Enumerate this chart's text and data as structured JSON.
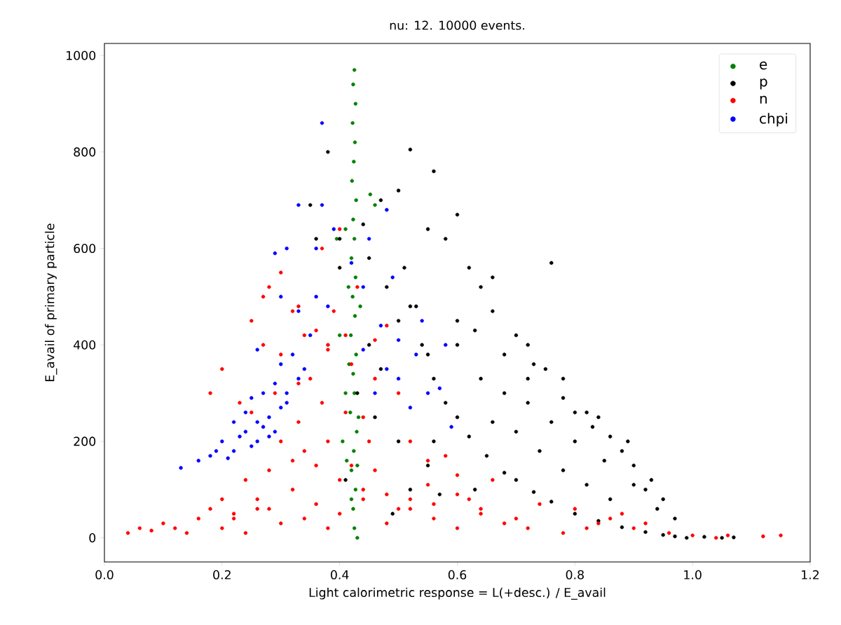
{
  "chart_data": {
    "type": "scatter",
    "title": "nu: 12. 10000 events.",
    "xlabel": "Light calorimetric response = L(+desc.) / E_avail",
    "ylabel": "E_avail of primary particle",
    "xlim": [
      0,
      1.2
    ],
    "ylim": [
      -50,
      1025
    ],
    "xticks": [
      {
        "value": 0,
        "label": "0.0"
      },
      0.2,
      0.4,
      0.6,
      0.8,
      {
        "value": 1,
        "label": "1.0"
      },
      1.2
    ],
    "yticks": [
      0,
      200,
      400,
      600,
      800,
      1000
    ],
    "legend": "top right",
    "marker": "circle",
    "grid": false,
    "series": [
      {
        "name": "e",
        "color": "#008000",
        "x": [
          0.425,
          0.423,
          0.427,
          0.422,
          0.426,
          0.424,
          0.421,
          0.428,
          0.423,
          0.425,
          0.42,
          0.427,
          0.422,
          0.426,
          0.419,
          0.428,
          0.423,
          0.425,
          0.418,
          0.429,
          0.424,
          0.42,
          0.427,
          0.423,
          0.425,
          0.41,
          0.395,
          0.452,
          0.46,
          0.4,
          0.41,
          0.405,
          0.43,
          0.415,
          0.435,
          0.412,
          0.432,
          0.416,
          0.43,
          0.42
        ],
        "values": [
          970,
          940,
          900,
          860,
          820,
          780,
          740,
          700,
          660,
          620,
          580,
          540,
          500,
          460,
          420,
          380,
          340,
          300,
          260,
          220,
          180,
          140,
          100,
          60,
          20,
          640,
          620,
          712,
          690,
          420,
          300,
          200,
          0,
          520,
          480,
          160,
          250,
          360,
          150,
          80
        ]
      },
      {
        "name": "p",
        "color": "#000000",
        "x": [
          0.51,
          0.52,
          0.54,
          0.56,
          0.58,
          0.6,
          0.62,
          0.65,
          0.68,
          0.7,
          0.73,
          0.76,
          0.8,
          0.84,
          0.88,
          0.92,
          0.95,
          0.97,
          0.99,
          1.02,
          1.05,
          1.07,
          0.52,
          0.56,
          0.6,
          0.55,
          0.58,
          0.62,
          0.64,
          0.66,
          0.6,
          0.63,
          0.68,
          0.7,
          0.73,
          0.75,
          0.78,
          0.8,
          0.83,
          0.86,
          0.88,
          0.9,
          0.93,
          0.95,
          0.68,
          0.72,
          0.76,
          0.8,
          0.85,
          0.9,
          0.94,
          0.66,
          0.7,
          0.74,
          0.78,
          0.82,
          0.86,
          0.64,
          0.72,
          0.78,
          0.84,
          0.89,
          0.92,
          0.97,
          0.38,
          0.35,
          0.4,
          0.44,
          0.47,
          0.5,
          0.45,
          0.48,
          0.5,
          0.53,
          0.45,
          0.47,
          0.55,
          0.43,
          0.36,
          0.4,
          0.46,
          0.5,
          0.41,
          0.56,
          0.52,
          0.63,
          0.72,
          0.6,
          0.66,
          0.76,
          0.82,
          0.55,
          0.57,
          0.49
        ],
        "values": [
          560,
          480,
          400,
          330,
          280,
          250,
          210,
          170,
          135,
          120,
          95,
          75,
          50,
          35,
          22,
          12,
          6,
          3,
          0,
          2,
          0,
          1,
          805,
          760,
          670,
          640,
          620,
          560,
          520,
          470,
          400,
          430,
          380,
          420,
          360,
          350,
          330,
          260,
          230,
          210,
          180,
          150,
          120,
          80,
          300,
          280,
          240,
          200,
          160,
          110,
          60,
          240,
          220,
          180,
          140,
          110,
          80,
          330,
          330,
          290,
          250,
          200,
          100,
          40,
          800,
          690,
          620,
          650,
          700,
          720,
          580,
          520,
          450,
          480,
          400,
          350,
          380,
          300,
          620,
          560,
          250,
          200,
          120,
          200,
          100,
          100,
          400,
          450,
          540,
          570,
          260,
          150,
          90,
          50
        ]
      },
      {
        "name": "n",
        "color": "#ff0000",
        "x": [
          0.04,
          0.06,
          0.08,
          0.1,
          0.12,
          0.14,
          0.16,
          0.18,
          0.2,
          0.22,
          0.24,
          0.26,
          0.28,
          0.3,
          0.32,
          0.34,
          0.36,
          0.38,
          0.4,
          0.44,
          0.48,
          0.52,
          0.56,
          0.6,
          0.64,
          0.68,
          0.72,
          0.78,
          0.84,
          0.9,
          0.96,
          1.0,
          1.04,
          1.06,
          1.12,
          1.15,
          0.2,
          0.24,
          0.28,
          0.32,
          0.36,
          0.4,
          0.44,
          0.48,
          0.52,
          0.56,
          0.6,
          0.64,
          0.7,
          0.22,
          0.26,
          0.3,
          0.34,
          0.38,
          0.42,
          0.46,
          0.5,
          0.55,
          0.6,
          0.25,
          0.29,
          0.33,
          0.37,
          0.41,
          0.45,
          0.3,
          0.34,
          0.38,
          0.42,
          0.46,
          0.5,
          0.18,
          0.2,
          0.23,
          0.25,
          0.27,
          0.3,
          0.33,
          0.36,
          0.39,
          0.43,
          0.28,
          0.32,
          0.37,
          0.4,
          0.35,
          0.38,
          0.46,
          0.48,
          0.55,
          0.62,
          0.66,
          0.74,
          0.8,
          0.86,
          0.92,
          0.82,
          0.88,
          0.52,
          0.58,
          0.44,
          0.27,
          0.41,
          0.33
        ],
        "values": [
          10,
          20,
          15,
          30,
          20,
          10,
          40,
          60,
          20,
          50,
          10,
          80,
          60,
          30,
          100,
          40,
          70,
          20,
          50,
          80,
          30,
          60,
          40,
          20,
          50,
          30,
          20,
          10,
          30,
          20,
          10,
          5,
          0,
          5,
          3,
          5,
          80,
          120,
          140,
          160,
          150,
          120,
          100,
          90,
          80,
          70,
          90,
          60,
          40,
          40,
          60,
          200,
          180,
          200,
          150,
          140,
          60,
          110,
          130,
          260,
          300,
          320,
          280,
          260,
          200,
          380,
          420,
          400,
          360,
          330,
          300,
          300,
          350,
          280,
          450,
          500,
          550,
          480,
          430,
          470,
          520,
          520,
          470,
          600,
          640,
          330,
          390,
          410,
          440,
          160,
          80,
          120,
          70,
          60,
          40,
          30,
          20,
          50,
          200,
          170,
          250,
          400,
          420,
          240
        ]
      },
      {
        "name": "chpi",
        "color": "#0000ff",
        "x": [
          0.13,
          0.16,
          0.18,
          0.19,
          0.2,
          0.21,
          0.22,
          0.23,
          0.24,
          0.25,
          0.26,
          0.27,
          0.28,
          0.29,
          0.3,
          0.31,
          0.22,
          0.24,
          0.26,
          0.28,
          0.25,
          0.27,
          0.29,
          0.31,
          0.33,
          0.3,
          0.32,
          0.34,
          0.35,
          0.33,
          0.36,
          0.38,
          0.36,
          0.29,
          0.31,
          0.33,
          0.37,
          0.46,
          0.48,
          0.5,
          0.52,
          0.44,
          0.47,
          0.5,
          0.53,
          0.57,
          0.59,
          0.49,
          0.45,
          0.48,
          0.37,
          0.39,
          0.42,
          0.44,
          0.54,
          0.58,
          0.55,
          0.26,
          0.3
        ],
        "values": [
          145,
          160,
          170,
          180,
          200,
          165,
          180,
          210,
          220,
          190,
          240,
          230,
          250,
          220,
          270,
          280,
          240,
          260,
          200,
          210,
          290,
          300,
          320,
          300,
          330,
          360,
          380,
          350,
          420,
          470,
          500,
          480,
          600,
          590,
          600,
          690,
          860,
          300,
          350,
          330,
          270,
          390,
          440,
          410,
          380,
          310,
          230,
          540,
          620,
          680,
          690,
          640,
          570,
          520,
          450,
          400,
          300,
          390,
          500
        ]
      }
    ]
  }
}
